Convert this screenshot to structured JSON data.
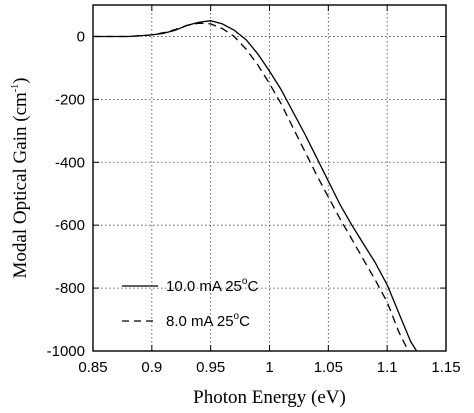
{
  "chart_data": {
    "type": "line",
    "title": "",
    "xlabel": "Photon Energy (eV)",
    "ylabel": {
      "main": "Modal Optical Gain (cm",
      "sup": "-1",
      "close": ")"
    },
    "xlim": [
      0.85,
      1.15
    ],
    "ylim": [
      -1000,
      100
    ],
    "xticks": [
      0.85,
      0.9,
      0.95,
      1,
      1.05,
      1.1,
      1.15
    ],
    "xtick_labels": [
      "0.85",
      "0.9",
      "0.95",
      "1",
      "1.05",
      "1.1",
      "1.15"
    ],
    "yticks": [
      -1000,
      -800,
      -600,
      -400,
      -200,
      0
    ],
    "ytick_labels": [
      "-1000",
      "-800",
      "-600",
      "-400",
      "-200",
      "0"
    ],
    "grid": true,
    "legend_position": "bottom-left",
    "series": [
      {
        "name": "10.0 mA 25°C",
        "legend_parts": {
          "text": "10.0 mA 25",
          "sup": "o",
          "unit": "C"
        },
        "style": "solid",
        "color": "#000000",
        "x": [
          0.85,
          0.88,
          0.9,
          0.91,
          0.92,
          0.93,
          0.94,
          0.95,
          0.96,
          0.97,
          0.98,
          0.99,
          1.0,
          1.01,
          1.02,
          1.03,
          1.04,
          1.05,
          1.06,
          1.07,
          1.08,
          1.09,
          1.1,
          1.11,
          1.12,
          1.125
        ],
        "y": [
          0,
          0,
          5,
          10,
          20,
          35,
          45,
          50,
          40,
          20,
          -10,
          -55,
          -110,
          -170,
          -240,
          -310,
          -385,
          -460,
          -535,
          -600,
          -660,
          -720,
          -790,
          -880,
          -970,
          -1000
        ]
      },
      {
        "name": "8.0 mA 25°C",
        "legend_parts": {
          "text": "8.0 mA  25",
          "sup": "o",
          "unit": "C"
        },
        "style": "dashed",
        "color": "#000000",
        "x": [
          0.85,
          0.88,
          0.9,
          0.91,
          0.92,
          0.93,
          0.94,
          0.95,
          0.96,
          0.97,
          0.98,
          0.99,
          1.0,
          1.01,
          1.02,
          1.03,
          1.04,
          1.05,
          1.06,
          1.07,
          1.08,
          1.09,
          1.1,
          1.11,
          1.118
        ],
        "y": [
          0,
          0,
          5,
          12,
          22,
          35,
          42,
          40,
          25,
          0,
          -40,
          -90,
          -150,
          -215,
          -290,
          -365,
          -440,
          -510,
          -580,
          -645,
          -710,
          -775,
          -845,
          -940,
          -1000
        ]
      }
    ]
  }
}
